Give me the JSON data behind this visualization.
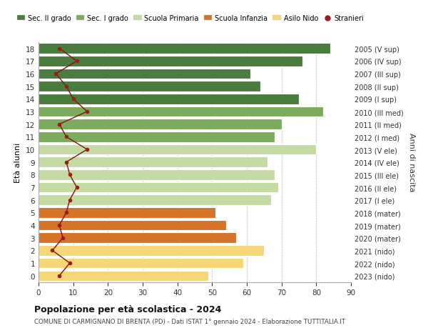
{
  "ages": [
    18,
    17,
    16,
    15,
    14,
    13,
    12,
    11,
    10,
    9,
    8,
    7,
    6,
    5,
    4,
    3,
    2,
    1,
    0
  ],
  "right_labels": [
    "2005 (V sup)",
    "2006 (IV sup)",
    "2007 (III sup)",
    "2008 (II sup)",
    "2009 (I sup)",
    "2010 (III med)",
    "2011 (II med)",
    "2012 (I med)",
    "2013 (V ele)",
    "2014 (IV ele)",
    "2015 (III ele)",
    "2016 (II ele)",
    "2017 (I ele)",
    "2018 (mater)",
    "2019 (mater)",
    "2020 (mater)",
    "2021 (nido)",
    "2022 (nido)",
    "2023 (nido)"
  ],
  "bar_values": [
    84,
    76,
    61,
    64,
    75,
    82,
    70,
    68,
    80,
    66,
    68,
    69,
    67,
    51,
    54,
    57,
    65,
    59,
    49
  ],
  "stranieri_values": [
    6,
    11,
    5,
    8,
    10,
    14,
    6,
    8,
    14,
    8,
    9,
    11,
    9,
    8,
    6,
    7,
    4,
    9,
    6
  ],
  "categories": {
    "sec2": [
      18,
      17,
      16,
      15,
      14
    ],
    "sec1": [
      13,
      12,
      11
    ],
    "primaria": [
      10,
      9,
      8,
      7,
      6
    ],
    "infanzia": [
      5,
      4,
      3
    ],
    "nido": [
      2,
      1,
      0
    ]
  },
  "colors": {
    "sec2": "#4a7c3f",
    "sec1": "#7dab5e",
    "primaria": "#c5dba4",
    "infanzia": "#d4732a",
    "nido": "#f5d778"
  },
  "legend_labels": [
    "Sec. II grado",
    "Sec. I grado",
    "Scuola Primaria",
    "Scuola Infanzia",
    "Asilo Nido",
    "Stranieri"
  ],
  "legend_colors": [
    "#4a7c3f",
    "#7dab5e",
    "#c5dba4",
    "#d4732a",
    "#f5d778",
    "#9b1c1c"
  ],
  "stranieri_color": "#9b1c1c",
  "stranieri_line_color": "#8b1010",
  "xlim": [
    0,
    90
  ],
  "xticks": [
    0,
    10,
    20,
    30,
    40,
    50,
    60,
    70,
    80,
    90
  ],
  "title": "Popolazione per età scolastica - 2024",
  "subtitle": "COMUNE DI CARMIGNANO DI BRENTA (PD) - Dati ISTAT 1° gennaio 2024 - Elaborazione TUTTITALIA.IT",
  "ylabel": "Età alunni",
  "ylabel_right": "Anni di nascita",
  "background_color": "#ffffff",
  "grid_color": "#bbbbbb",
  "bar_height": 0.82
}
